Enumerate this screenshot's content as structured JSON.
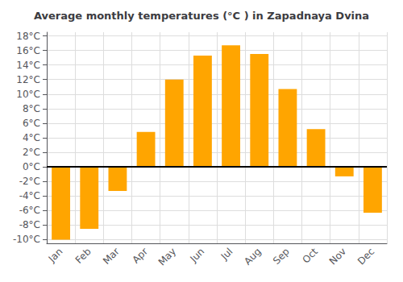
{
  "chart_data": {
    "type": "bar",
    "title": "Average monthly temperatures (°C ) in Zapadnaya Dvina",
    "categories": [
      "Jan",
      "Feb",
      "Mar",
      "Apr",
      "May",
      "Jun",
      "Jul",
      "Aug",
      "Sep",
      "Oct",
      "Nov",
      "Dec"
    ],
    "values": [
      -10,
      -8.5,
      -3.3,
      4.8,
      12.0,
      15.3,
      16.7,
      15.5,
      10.7,
      5.2,
      -1.3,
      -6.3
    ],
    "color": "#FFA500",
    "ylim": [
      -10.5,
      18.5
    ],
    "yticks": [
      {
        "value": -10,
        "label": "-10°C"
      },
      {
        "value": -8,
        "label": "-8°C"
      },
      {
        "value": -6,
        "label": "-6°C"
      },
      {
        "value": -4,
        "label": "-4°C"
      },
      {
        "value": -2,
        "label": "-2°C"
      },
      {
        "value": 0,
        "label": "0°C"
      },
      {
        "value": 2,
        "label": "2°C"
      },
      {
        "value": 4,
        "label": "4°C"
      },
      {
        "value": 6,
        "label": "6°C"
      },
      {
        "value": 8,
        "label": "8°C"
      },
      {
        "value": 10,
        "label": "10°C"
      },
      {
        "value": 12,
        "label": "12°C"
      },
      {
        "value": 14,
        "label": "14°C"
      },
      {
        "value": 16,
        "label": "16°C"
      },
      {
        "value": 18,
        "label": "18°C"
      }
    ],
    "grid": true
  }
}
